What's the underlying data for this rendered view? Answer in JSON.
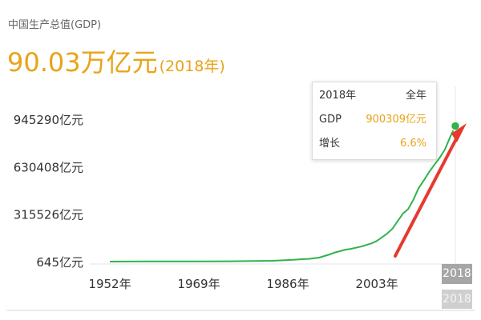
{
  "header": {
    "title": "中国生产总值(GDP)",
    "value": "90.03万亿元",
    "year_suffix": "(2018年)"
  },
  "tooltip": {
    "period_label": "2018年",
    "period_value": "全年",
    "gdp_label": "GDP",
    "gdp_value": "900309亿元",
    "growth_label": "增长",
    "growth_value": "6.6%"
  },
  "year_badge": "2018",
  "colors": {
    "accent": "#e8a416",
    "line": "#2fb34a",
    "arrow": "#e53a2f",
    "point": "#2fb34a"
  },
  "chart_data": {
    "type": "line",
    "title": "中国生产总值(GDP)",
    "xlabel": "",
    "ylabel": "",
    "ytick_labels": [
      "645亿元",
      "315526亿元",
      "630408亿元",
      "945290亿元"
    ],
    "yticks": [
      645,
      315526,
      630408,
      945290
    ],
    "xtick_labels": [
      "1952年",
      "1969年",
      "1986年",
      "2003年"
    ],
    "xticks": [
      1952,
      1969,
      1986,
      2003
    ],
    "xlim": [
      1952,
      2018
    ],
    "ylim": [
      645,
      945290
    ],
    "grid": false,
    "unit": "亿元",
    "series": [
      {
        "x": [
          1952,
          1955,
          1960,
          1965,
          1970,
          1975,
          1978,
          1980,
          1983,
          1985,
          1987,
          1989,
          1990,
          1992,
          1994,
          1995,
          1997,
          1998,
          2000,
          2001,
          2002,
          2003,
          2004,
          2005,
          2006,
          2007,
          2008,
          2009,
          2010,
          2011,
          2012,
          2013,
          2014,
          2015,
          2016,
          2017,
          2018
        ],
        "y": [
          679,
          911,
          1470,
          1717,
          2253,
          3013,
          3679,
          4588,
          6020,
          9099,
          12175,
          17180,
          18873,
          27195,
          48638,
          61340,
          79715,
          85196,
          100280,
          110863,
          121717,
          137422,
          161840,
          187319,
          219439,
          270232,
          319516,
          349081,
          413030,
          489301,
          540367,
          595244,
          643974,
          689052,
          743586,
          827122,
          900309
        ]
      }
    ]
  }
}
